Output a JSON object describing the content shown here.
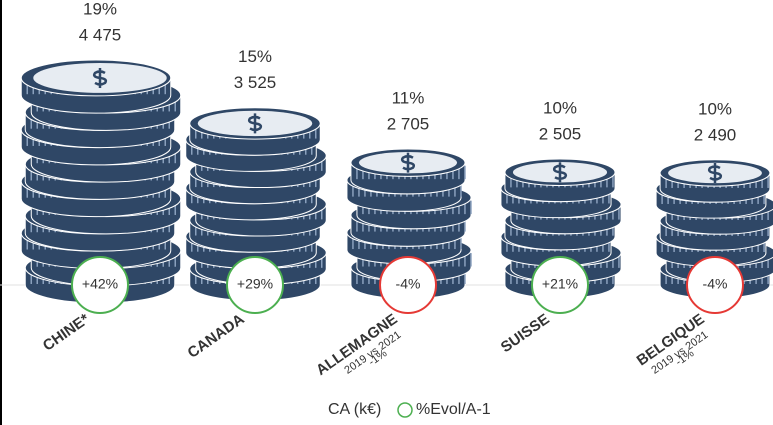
{
  "chart_data": {
    "type": "coins",
    "categories": [
      "CHINE*",
      "CANADA",
      "ALLEMAGNE",
      "SUISSE",
      "BELGIQUE"
    ],
    "values": [
      4475,
      3525,
      2705,
      2505,
      2490
    ],
    "value_labels": [
      "4 475",
      "3 525",
      "2 705",
      "2 505",
      "2 490"
    ],
    "shares": [
      19,
      15,
      11,
      10,
      10
    ],
    "share_labels": [
      "19%",
      "15%",
      "11%",
      "10%",
      "10%"
    ],
    "evolutions": [
      42,
      29,
      -4,
      21,
      -4
    ],
    "evolution_labels": [
      "+42%",
      "+29%",
      "-4%",
      "+21%",
      "-4%"
    ],
    "notes": [
      null,
      null,
      {
        "period": "2019 vs 2021",
        "value": -1,
        "label": "-1%"
      },
      null,
      {
        "period": "2019 vs 2021",
        "value": -1,
        "label": "-1%"
      }
    ],
    "color": "#2f4766",
    "positive_color": "#4caf50",
    "negative_color": "#e53935",
    "note_color": "#c62828",
    "legend": [
      "CA (k€)",
      "%Evol/A-1"
    ]
  }
}
